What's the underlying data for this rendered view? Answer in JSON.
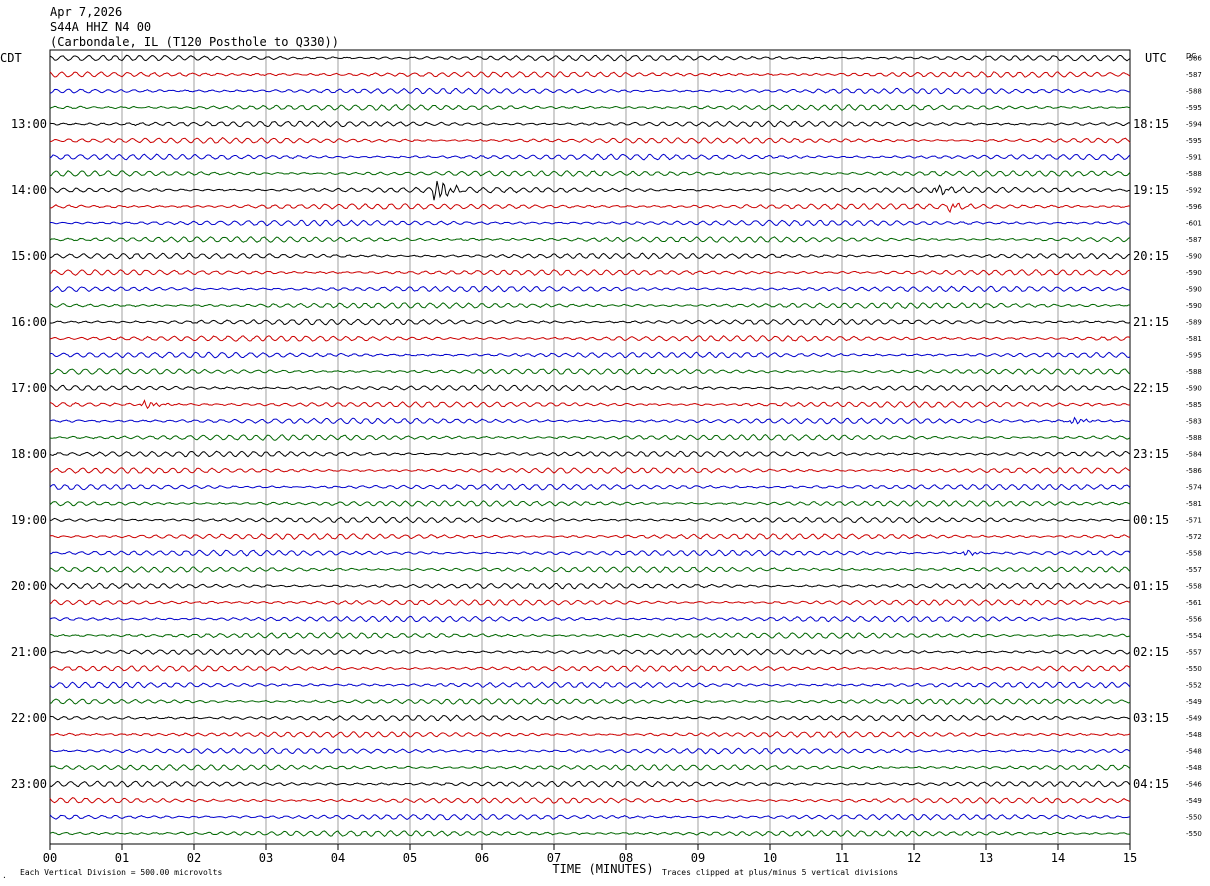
{
  "header": {
    "date": "Apr 7,2026",
    "station": "S44A HHZ N4 00",
    "location": "(Carbondale, IL (T120 Posthole to Q330))"
  },
  "chart_data": {
    "type": "line",
    "title": "Apr 7,2026",
    "left_axis_label": "CDT",
    "right_axis_label": "UTC",
    "dc_label": "DC",
    "xlabel": "TIME (MINUTES)",
    "xlim": [
      0,
      15
    ],
    "x_ticks": [
      "00",
      "01",
      "02",
      "03",
      "04",
      "05",
      "06",
      "07",
      "08",
      "09",
      "10",
      "11",
      "12",
      "13",
      "14",
      "15"
    ],
    "lines_per_hour": 4,
    "trace_colors": [
      "#000000",
      "#cc0000",
      "#0000cc",
      "#006600"
    ],
    "left_hour_labels": [
      "13:00",
      "14:00",
      "15:00",
      "16:00",
      "17:00",
      "18:00",
      "19:00",
      "20:00",
      "21:00",
      "22:00",
      "23:00"
    ],
    "right_hour_labels": [
      "18:15",
      "19:15",
      "20:15",
      "21:15",
      "22:15",
      "23:15",
      "00:15",
      "01:15",
      "02:15",
      "03:15",
      "04:15"
    ],
    "dc_offsets": [
      -586,
      -587,
      -588,
      -595,
      -594,
      -595,
      -591,
      -588,
      -592,
      -596,
      -601,
      -587,
      -590,
      -590,
      -590,
      -590,
      -589,
      -581,
      -595,
      -588,
      -590,
      -585,
      -583,
      -588,
      -584,
      -586,
      -574,
      -581,
      -571,
      -572,
      -558,
      -557,
      -558,
      -561,
      -556,
      -554,
      -557,
      -550,
      -552,
      -549,
      -549,
      -548,
      -548,
      -548,
      -546,
      -549,
      -550,
      -550
    ],
    "grid": true,
    "events": [
      {
        "line": 8,
        "minute": 5.35,
        "amplitude": 3.2
      },
      {
        "line": 8,
        "minute": 12.3,
        "amplitude": 1.2
      },
      {
        "line": 9,
        "minute": 12.5,
        "amplitude": 1.0
      },
      {
        "line": 21,
        "minute": 1.3,
        "amplitude": 1.1
      },
      {
        "line": 22,
        "minute": 14.2,
        "amplitude": 0.9
      },
      {
        "line": 30,
        "minute": 12.7,
        "amplitude": 0.8
      }
    ]
  },
  "footer": {
    "scale_note": "Each Vertical Division =  500.00 microvolts",
    "clip_note": "Traces clipped at plus/minus 5 vertical divisions",
    "corner_mark": "."
  }
}
